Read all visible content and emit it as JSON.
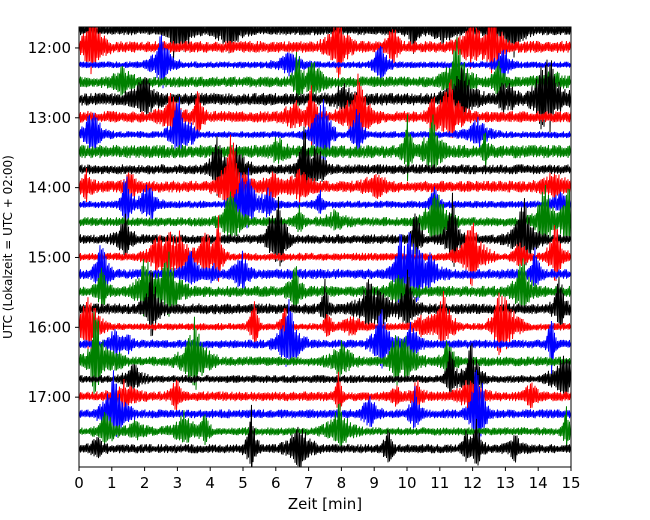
{
  "chart_data": {
    "type": "line",
    "title": "",
    "xlabel": "Zeit  [min]",
    "ylabel": "UTC (Lokalzeit = UTC + 02:00)",
    "xlim": [
      0,
      15
    ],
    "ylim_hours": [
      11.7,
      18.0
    ],
    "x_ticks": [
      "0",
      "1",
      "2",
      "3",
      "4",
      "5",
      "6",
      "7",
      "8",
      "9",
      "10",
      "11",
      "12",
      "13",
      "14",
      "15"
    ],
    "y_ticks": [
      {
        "hour": 12,
        "label": "12:00"
      },
      {
        "hour": 13,
        "label": "13:00"
      },
      {
        "hour": 14,
        "label": "14:00"
      },
      {
        "hour": 15,
        "label": "15:00"
      },
      {
        "hour": 16,
        "label": "16:00"
      },
      {
        "hour": 17,
        "label": "17:00"
      }
    ],
    "trace_interval_min": 15,
    "first_trace_hour": 11.75,
    "last_trace_hour": 17.75,
    "color_cycle": [
      "#000000",
      "#ff0000",
      "#0000ff",
      "#008000"
    ],
    "grid": false,
    "legend": "none"
  }
}
